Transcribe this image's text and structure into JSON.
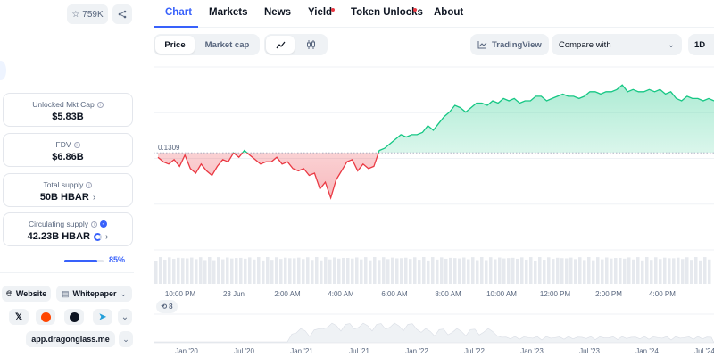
{
  "header": {
    "watchlist_count": "759K",
    "watchlist_icon": "star-icon",
    "share_icon": "share-icon"
  },
  "stats": [
    {
      "label": "Unlocked Mkt Cap",
      "value": "$5.83B",
      "has_info": true
    },
    {
      "label": "FDV",
      "value": "$6.86B",
      "has_info": true
    },
    {
      "label": "Total supply",
      "value": "50B HBAR",
      "has_info": true,
      "has_chevron": true
    },
    {
      "label": "Circulating supply",
      "value": "42.23B HBAR",
      "has_info": true,
      "verified": true,
      "has_chevron": true
    }
  ],
  "circulating_progress": {
    "percent": 85,
    "label": "85%"
  },
  "links": {
    "website": "Website",
    "whitepaper": "Whitepaper",
    "url": "app.dragonglass.me",
    "socials": [
      "x-icon",
      "reddit-icon",
      "github-icon",
      "telegram-icon",
      "chevron-down-icon"
    ]
  },
  "tabs": [
    {
      "label": "Chart",
      "active": true
    },
    {
      "label": "Markets"
    },
    {
      "label": "News"
    },
    {
      "label": "Yield",
      "dot": true
    },
    {
      "label": "Token Unlocks",
      "dot": true
    },
    {
      "label": "About"
    }
  ],
  "toolbar": {
    "price": "Price",
    "market_cap": "Market cap",
    "line_icon": "line-chart-icon",
    "candle_icon": "candlestick-icon",
    "tradingview": "TradingView",
    "compare": "Compare with",
    "interval": "1D"
  },
  "chart": {
    "colors": {
      "up": "#16c784",
      "down": "#ea3943",
      "up_fill": "#d7f5e8",
      "down_fill": "#fbd9db"
    },
    "page_badge": "8"
  },
  "chart_data": {
    "type": "line",
    "reference_value": 0.1309,
    "reference_label": "0.1309",
    "x_ticks": [
      "10:00 PM",
      "23 Jun",
      "2:00 AM",
      "4:00 AM",
      "6:00 AM",
      "8:00 AM",
      "10:00 AM",
      "12:00 PM",
      "2:00 PM",
      "4:00 PM",
      "6"
    ],
    "navigator_ticks": [
      "Jan '20",
      "Jul '20",
      "Jan '21",
      "Jul '21",
      "Jan '22",
      "Jul '22",
      "Jan '23",
      "Jul '23",
      "Jan '24",
      "Jul '24"
    ],
    "ylim": [
      0.1266,
      0.1347
    ],
    "y": [
      0.1307,
      0.1305,
      0.1304,
      0.1306,
      0.1303,
      0.1308,
      0.1302,
      0.13,
      0.1304,
      0.1301,
      0.1299,
      0.1303,
      0.1306,
      0.1305,
      0.1309,
      0.1307,
      0.131,
      0.1308,
      0.1306,
      0.1304,
      0.1305,
      0.1305,
      0.1307,
      0.1304,
      0.1305,
      0.1302,
      0.1301,
      0.1302,
      0.1299,
      0.13,
      0.1293,
      0.1296,
      0.1289,
      0.1297,
      0.1301,
      0.1305,
      0.1306,
      0.1301,
      0.1304,
      0.1302,
      0.1303,
      0.131,
      0.1311,
      0.1313,
      0.1315,
      0.1317,
      0.1316,
      0.1317,
      0.1317,
      0.1318,
      0.1321,
      0.1319,
      0.1322,
      0.1325,
      0.1327,
      0.133,
      0.1329,
      0.1327,
      0.1329,
      0.1331,
      0.1331,
      0.133,
      0.1332,
      0.1331,
      0.1333,
      0.1332,
      0.1333,
      0.1331,
      0.1332,
      0.1332,
      0.1334,
      0.1334,
      0.1332,
      0.1333,
      0.1334,
      0.1335,
      0.1334,
      0.1334,
      0.1333,
      0.1334,
      0.1336,
      0.1336,
      0.1335,
      0.1336,
      0.1336,
      0.1337,
      0.1339,
      0.1336,
      0.1337,
      0.1336,
      0.1336,
      0.1337,
      0.1336,
      0.1337,
      0.1335,
      0.1336,
      0.1333,
      0.1332,
      0.1334,
      0.1333,
      0.1333,
      0.1332,
      0.1333,
      0.1332
    ]
  }
}
